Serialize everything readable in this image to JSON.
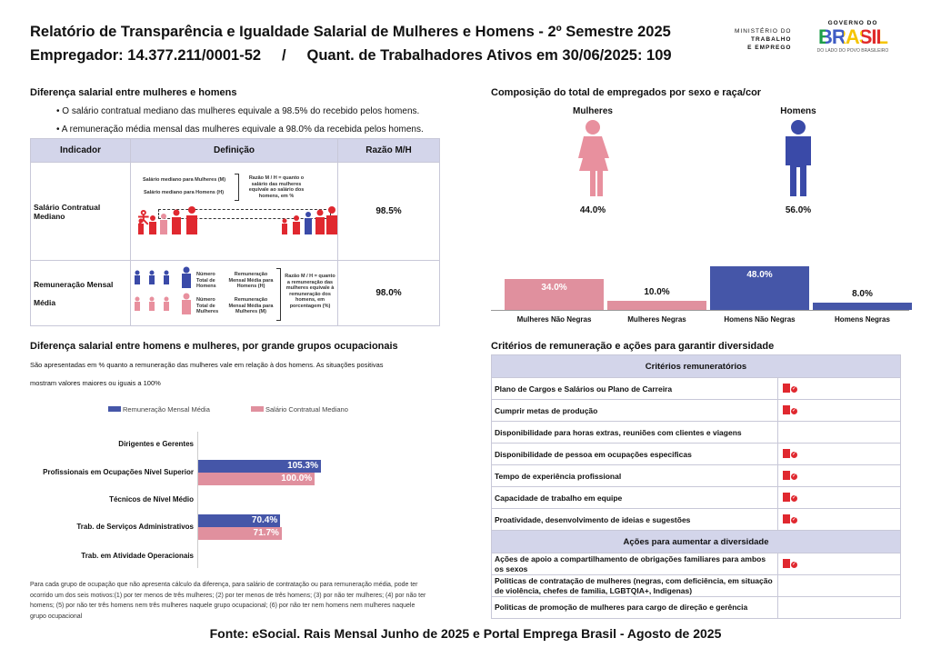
{
  "header": {
    "title": "Relatório de Transparência e Igualdade Salarial de Mulheres e Homens - 2º Semestre 2025",
    "employer": "Empregador: 14.377.211/0001-52",
    "separator": "/",
    "workers": "Quant. de Trabalhadores Ativos em 30/06/2025: 109"
  },
  "logos": {
    "ministry": [
      "MINISTÉRIO DO",
      "TRABALHO",
      "E EMPREGO"
    ],
    "gov_top": "GOVERNO DO",
    "gov_main": "BRASIL",
    "gov_sub": "DO LADO DO POVO BRASILEIRO"
  },
  "salary_diff": {
    "title": "Diferença salarial entre mulheres e homens",
    "bullets": [
      "• O salário contratual mediano das mulheres equivale a 98.5% do recebido pelos homens.",
      "• A remuneração média mensal das mulheres equivale a 98.0% da recebida pelos homens."
    ],
    "columns": [
      "Indicador",
      "Definição",
      "Razão M/H"
    ],
    "rows": [
      {
        "indicator": "Salário Contratual Mediano",
        "ratio": "98.5%"
      },
      {
        "indicator": "Remuneração Mensal Média",
        "ratio": "98.0%"
      }
    ],
    "def1": {
      "women": "Salário mediano para Mulheres (M)",
      "men": "Salário mediano para Homens (H)",
      "ratio": "Razão M / H = quanto o salário das mulheres equivale ao salário dos homens, em %"
    },
    "def2": {
      "total_men": "Número Total de Homens",
      "total_women": "Número Total de Mulheres",
      "avg_men": "Remuneração Mensal Média para Homens (H)",
      "avg_women": "Remuneração Mensal Média para Mulheres (M)",
      "ratio": "Razão M / H = quanto a remuneração das mulheres equivale à remuneração dos homens, em porcentagem (%)"
    }
  },
  "composition": {
    "title": "Composição do total de empregados por sexo e raça/cor",
    "women_label": "Mulheres",
    "men_label": "Homens",
    "women_pct": "44.0%",
    "men_pct": "56.0%",
    "chart_data": {
      "type": "bar",
      "categories": [
        "Mulheres Não Negras",
        "Mulheres Negras",
        "Homens Não Negras",
        "Homens Negras"
      ],
      "values": [
        34.0,
        10.0,
        48.0,
        8.0
      ],
      "labels": [
        "34.0%",
        "10.0%",
        "48.0%",
        "8.0%"
      ],
      "colors": [
        "#e0909e",
        "#e0909e",
        "#4556a8",
        "#4556a8"
      ]
    }
  },
  "occupational": {
    "title": "Diferença salarial entre homens e mulheres, por grande grupos ocupacionais",
    "desc": [
      "São apresentadas em % quanto a remuneração das mulheres vale em relação à dos homens. As situações positivas",
      "mostram valores maiores ou iguais a 100%"
    ],
    "chart_data": {
      "type": "bar",
      "orientation": "horizontal",
      "categories": [
        "Dirigentes e Gerentes",
        "Profissionais em Ocupações Nível Superior",
        "Técnicos de Nível Médio",
        "Trab. de Serviços Administrativos",
        "Trab. em Atividade Operacionais"
      ],
      "series": [
        {
          "name": "Remuneração Mensal Média",
          "color": "#4556a8",
          "values": [
            null,
            105.3,
            null,
            70.4,
            null
          ],
          "labels": [
            "",
            "105.3%",
            "",
            "70.4%",
            ""
          ]
        },
        {
          "name": "Salário Contratual Mediano",
          "color": "#e0909e",
          "values": [
            null,
            100.0,
            null,
            71.7,
            null
          ],
          "labels": [
            "",
            "100.0%",
            "",
            "71.7%",
            ""
          ]
        }
      ]
    },
    "note": "Para cada grupo de ocupação que não apresenta cálculo da diferença, para salário de contratação ou para remuneração média, pode ter ocorrido um dos seis motivos:(1) por ter menos de três mulheres; (2) por ter menos de três homens; (3) por não ter mulheres; (4) por não ter homens; (5) por não ter três homens nem três mulheres naquele grupo ocupacional; (6) por não ter nem homens nem mulheres naquele grupo ocupacional"
  },
  "criteria": {
    "title": "Critérios de remuneração e ações para garantir diversidade",
    "header1": "Critérios remuneratórios",
    "items1": [
      {
        "label": "Plano de Cargos e Salários ou Plano de Carreira",
        "checked": true
      },
      {
        "label": "Cumprir metas de produção",
        "checked": true
      },
      {
        "label": "Disponibilidade para horas extras, reuniões com clientes e viagens",
        "checked": false
      },
      {
        "label": "Disponibilidade de pessoa em ocupações especificas",
        "checked": true
      },
      {
        "label": "Tempo de experiência profissional",
        "checked": true
      },
      {
        "label": "Capacidade de trabalho em equipe",
        "checked": true
      },
      {
        "label": "Proatividade, desenvolvimento de ideias e sugestões",
        "checked": true
      }
    ],
    "header2": "Ações para aumentar a diversidade",
    "items2": [
      {
        "label": "Ações de apoio a compartilhamento de obrigações familiares para ambos os sexos",
        "checked": true
      },
      {
        "label": "Politicas de contratação de mulheres (negras, com deficiência, em situação de violência, chefes de familia, LGBTQIA+, Indigenas)",
        "checked": false
      },
      {
        "label": "Politicas de promoção de mulheres para cargo de direção e gerência",
        "checked": false
      }
    ]
  },
  "footer": "Fonte: eSocial. Rais Mensal Junho de 2025 e Portal Emprega Brasil - Agosto de 2025"
}
